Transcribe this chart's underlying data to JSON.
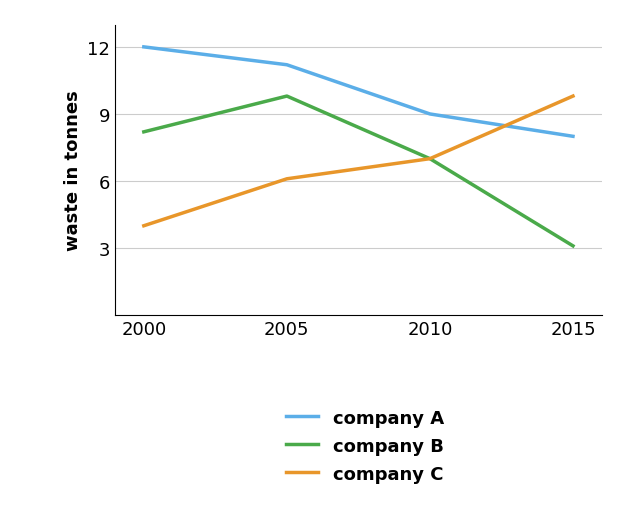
{
  "years": [
    2000,
    2005,
    2010,
    2015
  ],
  "company_A": [
    12,
    11.2,
    9.0,
    8.0
  ],
  "company_B": [
    8.2,
    9.8,
    7.0,
    3.1
  ],
  "company_C": [
    4.0,
    6.1,
    7.0,
    9.8
  ],
  "colors": {
    "company_A": "#5baee8",
    "company_B": "#4aaa4a",
    "company_C": "#e8962a"
  },
  "ylabel": "waste in tonnes",
  "yticks": [
    3,
    6,
    9,
    12
  ],
  "ylim": [
    0,
    13
  ],
  "xlim": [
    1999,
    2016
  ],
  "xticks": [
    2000,
    2005,
    2010,
    2015
  ],
  "legend_labels": [
    "company A",
    "company B",
    "company C"
  ],
  "line_width": 2.5,
  "legend_fontsize": 13,
  "tick_fontsize": 13,
  "ylabel_fontsize": 13
}
